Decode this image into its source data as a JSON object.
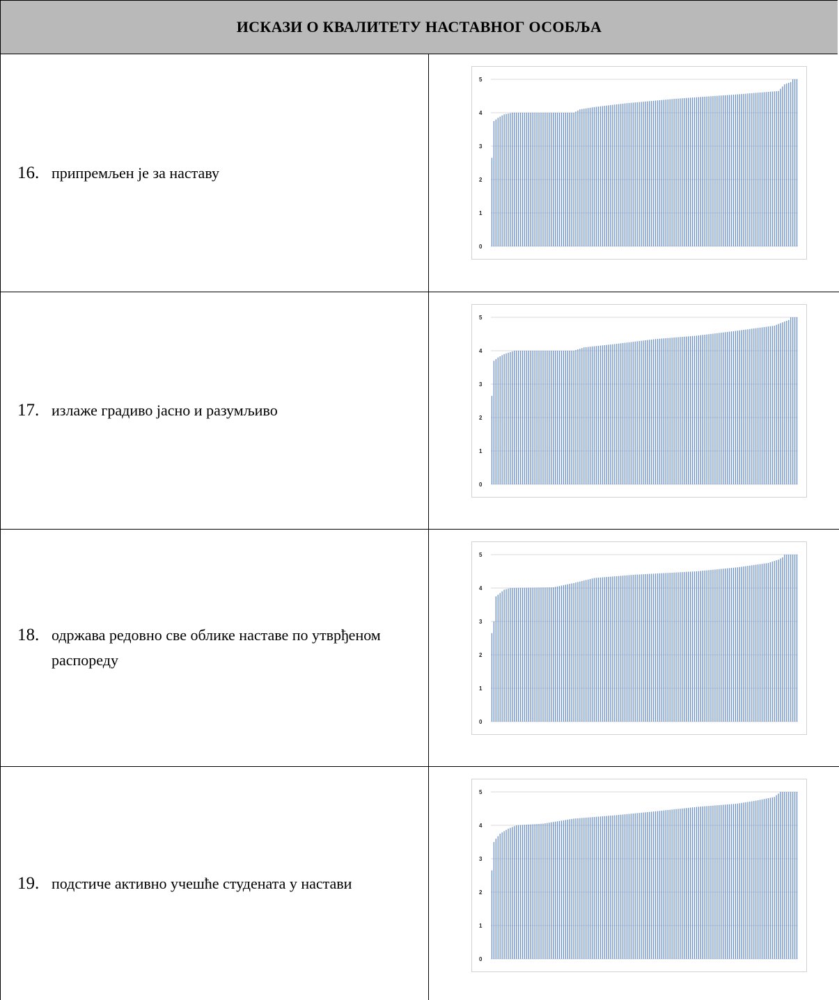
{
  "header": {
    "title": "ИСКАЗИ О КВАЛИТЕТУ НАСТАВНОГ ОСОБЉА"
  },
  "rows": [
    {
      "number": "16.",
      "text": "припремљен је за наставу"
    },
    {
      "number": "17.",
      "text": "излаже градиво јасно и разумљиво"
    },
    {
      "number": "18.",
      "text": "одржава редовно све облике наставе по утврђеном распореду"
    },
    {
      "number": "19.",
      "text": "подстиче активно учешће студената у настави"
    }
  ],
  "chart_data": [
    {
      "type": "bar",
      "bar_color": "#6a8fc7",
      "ylim": [
        0,
        5
      ],
      "yticks": [
        "0",
        "1",
        "2",
        "3",
        "4",
        "5"
      ],
      "grid": true,
      "bar_count": 150,
      "profile": [
        [
          0,
          2.65
        ],
        [
          1,
          3.75
        ],
        [
          3,
          3.85
        ],
        [
          6,
          3.95
        ],
        [
          10,
          4.0
        ],
        [
          40,
          4.0
        ],
        [
          43,
          4.1
        ],
        [
          50,
          4.17
        ],
        [
          65,
          4.28
        ],
        [
          90,
          4.42
        ],
        [
          120,
          4.55
        ],
        [
          140,
          4.65
        ],
        [
          143,
          4.85
        ],
        [
          146,
          4.92
        ],
        [
          147,
          5.0
        ],
        [
          149,
          5.0
        ]
      ]
    },
    {
      "type": "bar",
      "bar_color": "#6a8fc7",
      "ylim": [
        0,
        5
      ],
      "yticks": [
        "0",
        "1",
        "2",
        "3",
        "4",
        "5"
      ],
      "grid": true,
      "bar_count": 150,
      "profile": [
        [
          0,
          2.65
        ],
        [
          1,
          3.7
        ],
        [
          3,
          3.8
        ],
        [
          6,
          3.9
        ],
        [
          11,
          4.0
        ],
        [
          40,
          4.0
        ],
        [
          45,
          4.1
        ],
        [
          60,
          4.2
        ],
        [
          80,
          4.35
        ],
        [
          100,
          4.45
        ],
        [
          120,
          4.6
        ],
        [
          138,
          4.75
        ],
        [
          142,
          4.85
        ],
        [
          145,
          4.92
        ],
        [
          146,
          5.0
        ],
        [
          149,
          5.0
        ]
      ]
    },
    {
      "type": "bar",
      "bar_color": "#6a8fc7",
      "ylim": [
        0,
        5
      ],
      "yticks": [
        "0",
        "1",
        "2",
        "3",
        "4",
        "5"
      ],
      "grid": true,
      "bar_count": 150,
      "profile": [
        [
          0,
          2.65
        ],
        [
          1,
          3.0
        ],
        [
          2,
          3.75
        ],
        [
          4,
          3.85
        ],
        [
          6,
          3.95
        ],
        [
          9,
          4.0
        ],
        [
          30,
          4.02
        ],
        [
          40,
          4.15
        ],
        [
          50,
          4.3
        ],
        [
          70,
          4.4
        ],
        [
          100,
          4.5
        ],
        [
          120,
          4.62
        ],
        [
          135,
          4.75
        ],
        [
          140,
          4.85
        ],
        [
          142,
          4.92
        ],
        [
          143,
          5.0
        ],
        [
          149,
          5.0
        ]
      ]
    },
    {
      "type": "bar",
      "bar_color": "#6a8fc7",
      "ylim": [
        0,
        5
      ],
      "yticks": [
        "0",
        "1",
        "2",
        "3",
        "4",
        "5"
      ],
      "grid": true,
      "bar_count": 150,
      "profile": [
        [
          0,
          2.65
        ],
        [
          1,
          3.5
        ],
        [
          2,
          3.6
        ],
        [
          4,
          3.75
        ],
        [
          8,
          3.9
        ],
        [
          12,
          4.0
        ],
        [
          25,
          4.05
        ],
        [
          40,
          4.2
        ],
        [
          60,
          4.3
        ],
        [
          80,
          4.42
        ],
        [
          100,
          4.55
        ],
        [
          120,
          4.65
        ],
        [
          130,
          4.75
        ],
        [
          138,
          4.85
        ],
        [
          141,
          5.0
        ],
        [
          149,
          5.0
        ]
      ]
    }
  ]
}
